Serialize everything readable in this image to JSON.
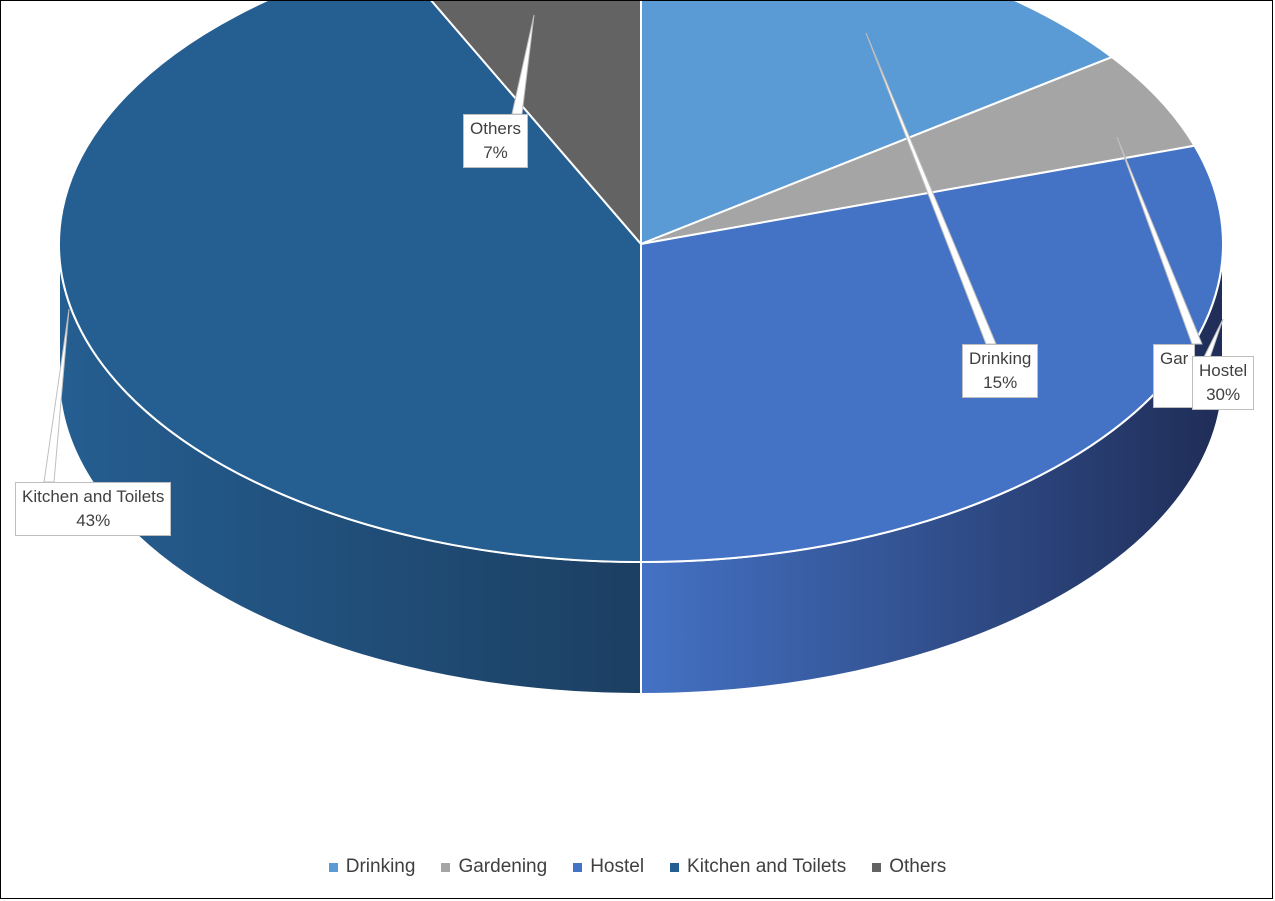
{
  "chart_data": {
    "type": "pie",
    "style": "3d",
    "title": "",
    "categories": [
      "Drinking",
      "Gardening",
      "Hostel",
      "Kitchen and Toilets",
      "Others"
    ],
    "values": [
      15,
      5,
      30,
      43,
      7
    ],
    "value_labels": [
      "15%",
      "",
      "30%",
      "43%",
      "7%"
    ],
    "label_names": [
      "Drinking",
      "Gar",
      "Hostel",
      "Kitchen and Toilets",
      "Others"
    ],
    "colors": [
      "#5b9bd5",
      "#a5a5a5",
      "#4472c4",
      "#255e91",
      "#636363"
    ],
    "side_colors": [
      "#3d6f9e",
      "#7a7a7a",
      "#1f2d57",
      "#1c3f62",
      "#474747"
    ],
    "legend_position": "bottom"
  }
}
